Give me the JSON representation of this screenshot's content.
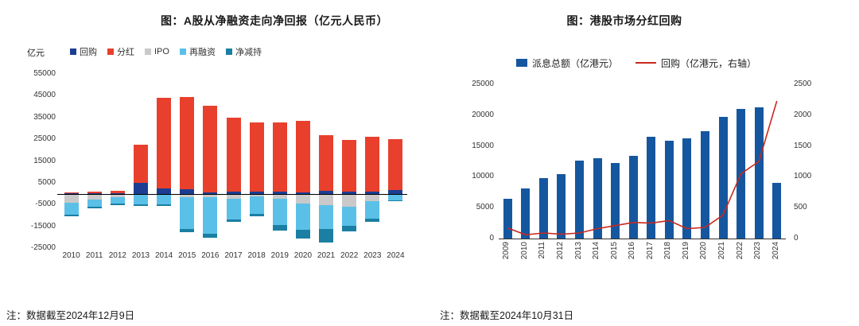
{
  "chart_data": [
    {
      "type": "bar",
      "stacked": true,
      "title": "图：A股从净融资走向净回报（亿元人民币）",
      "ylabel": "亿元",
      "xlabel": "",
      "note": "注：数据截至2024年12月9日",
      "grid": false,
      "legend_position": "top",
      "categories": [
        "2010",
        "2011",
        "2012",
        "2013",
        "2014",
        "2015",
        "2016",
        "2017",
        "2018",
        "2019",
        "2020",
        "2021",
        "2022",
        "2023",
        "2024"
      ],
      "ylim": [
        -25000,
        55000
      ],
      "yticks": [
        55000,
        45000,
        35000,
        25000,
        15000,
        5000,
        -5000,
        -15000,
        -25000
      ],
      "series": [
        {
          "name": "回购",
          "color": "#1c3e92",
          "values": [
            100,
            150,
            300,
            4800,
            2300,
            2100,
            700,
            900,
            900,
            1100,
            700,
            1200,
            1000,
            900,
            1600
          ]
        },
        {
          "name": "分红",
          "color": "#e8402d",
          "values": [
            500,
            750,
            1100,
            17700,
            41900,
            42200,
            39800,
            33900,
            31900,
            31500,
            32800,
            25800,
            23700,
            25400,
            23600
          ]
        },
        {
          "name": "IPO",
          "color": "#c9c9c9",
          "values": [
            -4000,
            -2600,
            -1500,
            -350,
            -700,
            -1600,
            -1500,
            -2300,
            -1400,
            -2500,
            -4700,
            -5400,
            -5900,
            -3600,
            -600
          ]
        },
        {
          "name": "再融资",
          "color": "#5bc0e8",
          "values": [
            -5500,
            -3500,
            -3200,
            -4500,
            -4100,
            -14500,
            -17000,
            -9500,
            -8000,
            -12000,
            -12000,
            -11000,
            -9000,
            -8000,
            -2500
          ]
        },
        {
          "name": "净减持",
          "color": "#1a7fa2",
          "values": [
            -1000,
            -500,
            -500,
            -700,
            -800,
            -1500,
            -1600,
            -1200,
            -1100,
            -2500,
            -3800,
            -6100,
            -2600,
            -1500,
            -300
          ]
        }
      ]
    },
    {
      "type": "bar+line",
      "title": "图：港股市场分红回购",
      "note": "注：数据截至2024年10月31日",
      "grid": false,
      "legend_position": "top",
      "categories": [
        "2009",
        "2010",
        "2011",
        "2012",
        "2013",
        "2014",
        "2015",
        "2016",
        "2017",
        "2018",
        "2019",
        "2020",
        "2021",
        "2022",
        "2023",
        "2024"
      ],
      "left_ylim": [
        0,
        25000
      ],
      "right_ylim": [
        0,
        2500
      ],
      "left_yticks": [
        0,
        5000,
        10000,
        15000,
        20000,
        25000
      ],
      "right_yticks": [
        0,
        500,
        1000,
        1500,
        2000,
        2500
      ],
      "series": [
        {
          "name": "派息总额（亿港元）",
          "type": "bar",
          "axis": "left",
          "color": "#15579f",
          "values": [
            6400,
            8100,
            9800,
            10500,
            12600,
            13000,
            12200,
            13400,
            16500,
            15900,
            16200,
            17400,
            19700,
            21000,
            21300,
            9000
          ]
        },
        {
          "name": "回购（亿港元，右轴）",
          "type": "line",
          "axis": "right",
          "color": "#c9281e",
          "values": [
            170,
            60,
            90,
            70,
            90,
            160,
            210,
            260,
            250,
            290,
            160,
            180,
            380,
            1050,
            1250,
            2230
          ]
        }
      ]
    }
  ]
}
